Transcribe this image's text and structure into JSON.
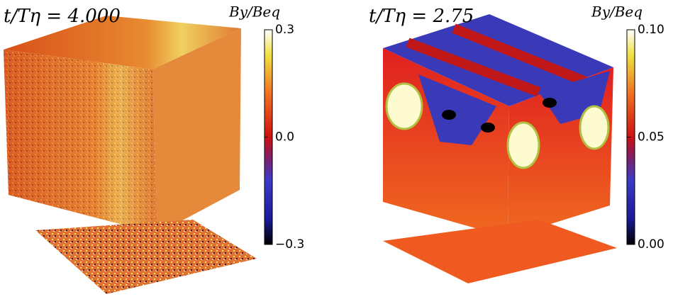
{
  "chart_data": [
    {
      "type": "cube",
      "title": "t/Tη = 4.000",
      "colorbar_label": "By/Beq",
      "clim": [
        -0.3,
        0.3
      ],
      "cticks": [
        0.3,
        {
          "value": 0,
          "label": "0.0"
        },
        {
          "value": -0.3,
          "label": "−0.3"
        }
      ]
    },
    {
      "type": "cube",
      "title": "t/Tη = 2.75",
      "colorbar_label": "By/Beq",
      "clim": [
        0,
        0.1
      ],
      "cticks": [
        {
          "value": 0.1,
          "label": "0.10"
        },
        {
          "value": 0.05,
          "label": "0.05"
        },
        {
          "value": 0,
          "label": "0.00"
        }
      ]
    }
  ]
}
